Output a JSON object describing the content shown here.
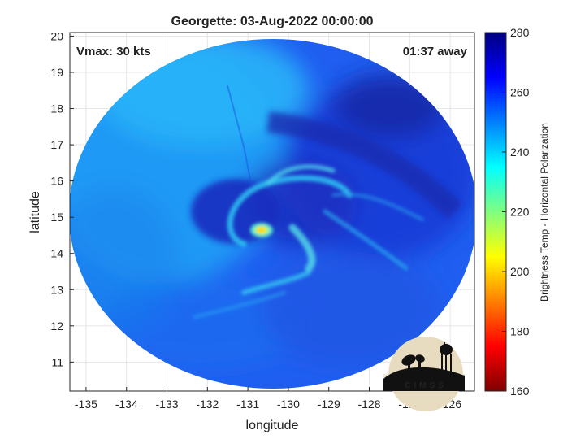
{
  "chart_data": {
    "type": "heatmap",
    "title": "Georgette: 03-Aug-2022 00:00:00",
    "xlabel": "longitude",
    "ylabel": "latitude",
    "xlim": [
      -135.4,
      -125.4
    ],
    "ylim": [
      10.2,
      20.1
    ],
    "xticks": [
      -135,
      -134,
      -133,
      -132,
      -131,
      -130,
      -129,
      -128,
      -127,
      -126
    ],
    "xtick_labels": [
      "-135",
      "-134",
      "-133",
      "-132",
      "-131",
      "-130",
      "-129",
      "-128",
      "-127",
      "-126"
    ],
    "yticks": [
      11,
      12,
      13,
      14,
      15,
      16,
      17,
      18,
      19,
      20
    ],
    "ytick_labels": [
      "11",
      "12",
      "13",
      "14",
      "15",
      "16",
      "17",
      "18",
      "19",
      "20"
    ],
    "grid": true,
    "annotations": {
      "vmax": "Vmax: 30 kts",
      "time_away": "01:37 away"
    },
    "colorbar": {
      "label": "Brightness Temp - Horizontal Polarization",
      "min": 160,
      "max": 280,
      "ticks": [
        160,
        180,
        200,
        220,
        240,
        260,
        280
      ],
      "tick_labels": [
        "160",
        "180",
        "200",
        "220",
        "240",
        "260",
        "280"
      ],
      "colormap": "jet"
    },
    "swath": {
      "center_lon": -130.6,
      "center_lat": 15.0
    },
    "storm_center": {
      "lon": -130.5,
      "lat": 14.6,
      "min_temp": 205
    },
    "features": [
      {
        "name": "eye-warm-spot",
        "lon": -130.5,
        "lat": 14.6,
        "temp": 205
      },
      {
        "name": "inner-band",
        "lon": -130.2,
        "lat": 15.6,
        "temp": 238
      },
      {
        "name": "east-band",
        "lon": -129.4,
        "lat": 14.3,
        "temp": 236
      },
      {
        "name": "south-band",
        "lon": -130.0,
        "lat": 13.3,
        "temp": 240
      },
      {
        "name": "north-bright-region",
        "lon": -133.0,
        "lat": 18.5,
        "temp": 245
      },
      {
        "name": "northeast-cold-region",
        "lon": -127.0,
        "lat": 17.5,
        "temp": 270
      }
    ]
  },
  "logo": {
    "text": "CIMSS"
  }
}
